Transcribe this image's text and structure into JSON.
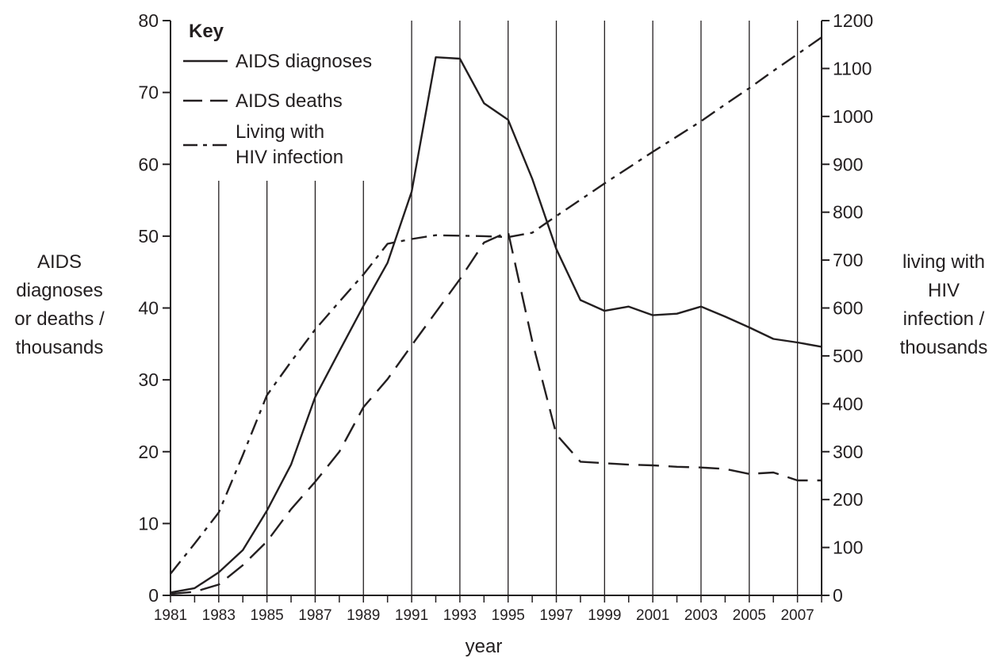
{
  "chart_data": {
    "type": "line",
    "title": "",
    "xlabel": "year",
    "ylabel_left": [
      "AIDS",
      "diagnoses",
      "or deaths /",
      "thousands"
    ],
    "ylabel_right": [
      "living with",
      "HIV",
      "infection /",
      "thousands"
    ],
    "xlim": [
      1981,
      2008
    ],
    "ylim_left": [
      0,
      80
    ],
    "ylim_right": [
      0,
      1200
    ],
    "x_ticks": [
      1981,
      1983,
      1985,
      1987,
      1989,
      1991,
      1993,
      1995,
      1997,
      1999,
      2001,
      2003,
      2005,
      2007
    ],
    "y_ticks_left": [
      0,
      10,
      20,
      30,
      40,
      50,
      60,
      70,
      80
    ],
    "y_ticks_right": [
      0,
      100,
      200,
      300,
      400,
      500,
      600,
      700,
      800,
      900,
      1000,
      1100,
      1200
    ],
    "legend": {
      "title": "Key",
      "position": "top-left",
      "entries": [
        "AIDS diagnoses",
        "AIDS deaths",
        [
          "Living with",
          "HIV infection"
        ]
      ]
    },
    "x": [
      1981,
      1982,
      1983,
      1984,
      1985,
      1986,
      1987,
      1988,
      1989,
      1990,
      1991,
      1992,
      1993,
      1994,
      1995,
      1996,
      1997,
      1998,
      1999,
      2000,
      2001,
      2002,
      2003,
      2004,
      2005,
      2006,
      2007,
      2008
    ],
    "series": [
      {
        "name": "AIDS diagnoses",
        "axis": "left",
        "style": "solid",
        "values": [
          0.4,
          1.0,
          3.2,
          6.3,
          11.8,
          18.2,
          27.6,
          34.0,
          40.3,
          46.3,
          56.2,
          74.9,
          74.7,
          68.5,
          66.2,
          58.0,
          48.2,
          41.1,
          39.6,
          40.2,
          39.0,
          39.2,
          40.2,
          38.8,
          37.3,
          35.7,
          35.2,
          34.6
        ]
      },
      {
        "name": "AIDS deaths",
        "axis": "left",
        "style": "dashed",
        "values": [
          0.2,
          0.5,
          1.5,
          4.2,
          7.5,
          12.0,
          15.8,
          20.0,
          26.2,
          30.1,
          34.8,
          39.4,
          44.0,
          49.1,
          50.6,
          35.4,
          22.4,
          18.6,
          18.4,
          18.2,
          18.1,
          17.9,
          17.8,
          17.6,
          16.9,
          17.1,
          16.0,
          16.0
        ]
      },
      {
        "name": "Living with HIV infection",
        "axis": "right",
        "style": "dash-dot",
        "values": [
          45,
          108,
          173,
          293,
          418,
          488,
          555,
          613,
          670,
          734,
          744,
          752,
          751,
          750,
          748,
          757,
          792,
          826,
          860,
          893,
          926,
          958,
          990,
          1025,
          1059,
          1095,
          1130,
          1165
        ]
      }
    ]
  }
}
